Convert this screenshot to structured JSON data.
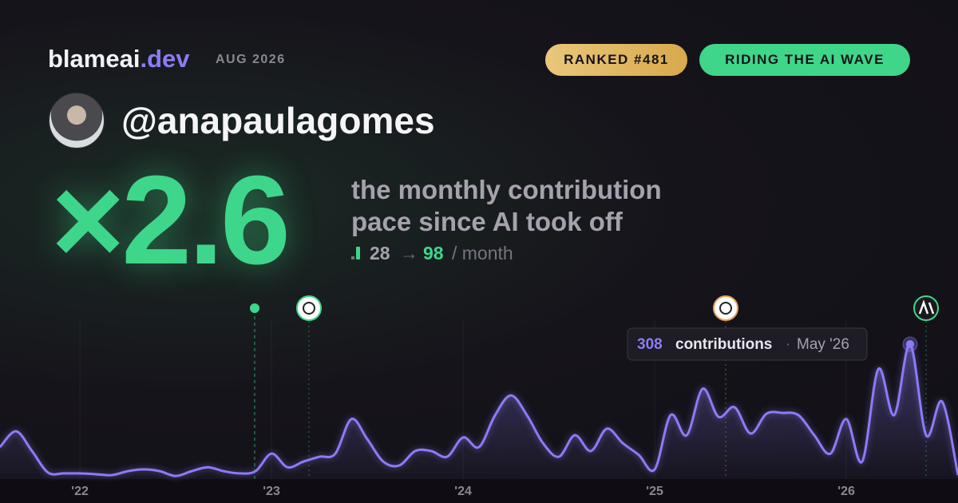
{
  "header": {
    "brand": "blameai",
    "brand_tld": ".dev",
    "period": "AUG 2026",
    "rank_badge": "RANKED #481",
    "status_badge": "RIDING THE AI WAVE",
    "username": "@anapaulagomes"
  },
  "headline": {
    "multiplier": "×2.6",
    "line1": "the monthly contribution",
    "line2": "pace since AI took off",
    "before": "28",
    "arrow": "→",
    "after": "98",
    "unit": "/ month"
  },
  "tooltip": {
    "label": "contributions",
    "separator": "·",
    "date": "May '26"
  },
  "chart_data": {
    "type": "line",
    "color": "#8b7cf6",
    "x": [
      2021.583,
      2021.667,
      2021.75,
      2021.833,
      2021.917,
      2022.0,
      2022.083,
      2022.167,
      2022.25,
      2022.333,
      2022.417,
      2022.5,
      2022.583,
      2022.667,
      2022.75,
      2022.833,
      2022.917,
      2023.0,
      2023.083,
      2023.167,
      2023.25,
      2023.333,
      2023.417,
      2023.5,
      2023.583,
      2023.667,
      2023.75,
      2023.833,
      2023.917,
      2024.0,
      2024.083,
      2024.167,
      2024.25,
      2024.333,
      2024.417,
      2024.5,
      2024.583,
      2024.667,
      2024.75,
      2024.833,
      2024.917,
      2025.0,
      2025.083,
      2025.167,
      2025.25,
      2025.333,
      2025.417,
      2025.5,
      2025.583,
      2025.667,
      2025.75,
      2025.833,
      2025.917,
      2026.0,
      2026.083,
      2026.167,
      2026.25,
      2026.333,
      2026.417,
      2026.5,
      2026.583
    ],
    "values": [
      73,
      109,
      64,
      15,
      13,
      13,
      11,
      9,
      18,
      22,
      18,
      7,
      18,
      27,
      18,
      13,
      18,
      58,
      27,
      40,
      51,
      58,
      137,
      91,
      40,
      31,
      64,
      64,
      51,
      95,
      73,
      146,
      191,
      146,
      82,
      51,
      100,
      64,
      115,
      82,
      55,
      22,
      146,
      100,
      206,
      142,
      164,
      104,
      149,
      151,
      146,
      100,
      58,
      137,
      40,
      251,
      146,
      308,
      100,
      177,
      9
    ],
    "xlim": [
      2021.583,
      2026.583
    ],
    "ylim": [
      0,
      350
    ],
    "xticks": [
      {
        "value": 2022,
        "label": "'22"
      },
      {
        "value": 2023,
        "label": "'23"
      },
      {
        "value": 2024,
        "label": "'24"
      },
      {
        "value": 2025,
        "label": "'25"
      },
      {
        "value": 2026,
        "label": "'26"
      }
    ],
    "grid": true
  }
}
